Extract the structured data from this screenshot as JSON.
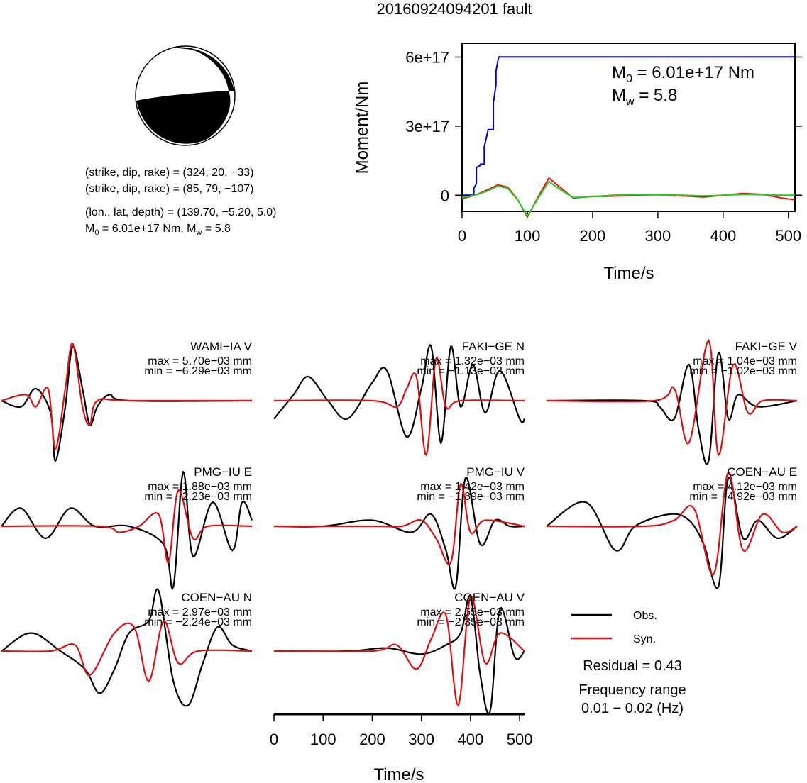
{
  "page": {
    "title": "20160924094201 fault"
  },
  "mechanism": {
    "line1": "(strike, dip, rake) = (324, 20, −33)",
    "line2": "(strike, dip, rake) = (85, 79, −107)",
    "line3": "(lon., lat, depth) = (139.70, −5.20, 5.0)",
    "line4_m0": "M",
    "line4_m0sub": "0",
    "line4_rest1": " = 6.01e+17 Nm, M",
    "line4_mwsub": "w",
    "line4_rest2": " = 5.8",
    "fill_color": "#000000"
  },
  "chart_data": [
    {
      "type": "line",
      "id": "moment-rate",
      "xlabel": "Time/s",
      "ylabel": "Moment/Nm",
      "xlim": [
        0,
        510
      ],
      "ylim": [
        -7e+16,
        6.6e+17
      ],
      "xticks": [
        0,
        100,
        200,
        300,
        400,
        500
      ],
      "yticks": [
        0,
        3e+17,
        6e+17
      ],
      "ytick_labels": [
        "0",
        "3e+17",
        "6e+17"
      ],
      "annotation": {
        "m0_symbol": "M",
        "m0_sub": "0",
        "m0_value": " = 6.01e+17 Nm",
        "mw_symbol": "M",
        "mw_sub": "w",
        "mw_value": " = 5.8"
      },
      "series": [
        {
          "color": "#0000cc",
          "x": [
            0,
            18,
            18,
            22,
            22,
            28,
            28,
            34,
            34,
            40,
            40,
            48,
            48,
            52,
            52,
            56,
            56,
            510
          ],
          "y": [
            0,
            0,
            3e+16,
            5e+16,
            1.2e+17,
            1.3e+17,
            1.35e+17,
            1.35e+17,
            2.1e+17,
            2.85e+17,
            2.85e+17,
            2.85e+17,
            4e+17,
            4.8e+17,
            5.4e+17,
            6e+17,
            6.01e+17,
            6.01e+17
          ]
        },
        {
          "color": "#ee1111",
          "x": [
            0,
            20,
            40,
            55,
            70,
            85,
            100,
            115,
            133,
            150,
            170,
            200,
            230,
            260,
            300,
            340,
            370,
            400,
            430,
            460,
            490,
            510
          ],
          "y": [
            -1.5e+16,
            0,
            2.5e+16,
            4.5e+16,
            3.5e+16,
            -1.8e+16,
            -9.5e+16,
            -1.5e+16,
            7.5e+16,
            3.5e+16,
            -1.2e+16,
            -5000000000000000.0,
            -4000000000000000.0,
            0,
            2000000000000000.0,
            -3000000000000000.0,
            -8000000000000000.0,
            0,
            8000000000000000.0,
            4000000000000000.0,
            -1.2e+16,
            -2e+16
          ]
        },
        {
          "color": "#22cc22",
          "x": [
            0,
            20,
            40,
            55,
            70,
            85,
            100,
            115,
            133,
            150,
            170,
            200,
            230,
            260,
            300,
            340,
            370,
            400,
            430,
            460,
            490,
            510
          ],
          "y": [
            -1e+16,
            0,
            2e+16,
            4e+16,
            3e+16,
            -2e+16,
            -9e+16,
            -2e+16,
            6e+16,
            2.5e+16,
            -1e+16,
            -6000000000000000.0,
            0,
            3000000000000000.0,
            2000000000000000.0,
            0,
            -3000000000000000.0,
            0,
            3000000000000000.0,
            2000000000000000.0,
            0,
            0
          ]
        }
      ]
    },
    {
      "type": "line",
      "id": "waveforms",
      "xlabel": "Time/s",
      "xlim": [
        0,
        510
      ],
      "xticks": [
        0,
        100,
        200,
        300,
        400,
        500
      ],
      "legend": {
        "obs": "Obs.",
        "syn": "Syn.",
        "obs_color": "#000000",
        "syn_color": "#dd1111"
      },
      "residual": "Residual = 0.43",
      "freq_label": "Frequency range",
      "freq_value": "0.01 − 0.02 (Hz)",
      "stations": [
        {
          "name": "WAMI−IA V",
          "max": "max = 5.70e−03 mm",
          "min": "min = −6.29e−03 mm",
          "obs": [
            [
              0,
              0
            ],
            [
              40,
              -0.1
            ],
            [
              70,
              0.2
            ],
            [
              100,
              -0.2
            ],
            [
              110,
              -1.0
            ],
            [
              130,
              -0.1
            ],
            [
              145,
              0.9
            ],
            [
              165,
              0.2
            ],
            [
              180,
              -0.4
            ],
            [
              195,
              -0.1
            ],
            [
              220,
              0.1
            ],
            [
              260,
              0.0
            ],
            [
              510,
              0.0
            ]
          ],
          "syn": [
            [
              0,
              0
            ],
            [
              50,
              0.1
            ],
            [
              70,
              -0.1
            ],
            [
              95,
              0.2
            ],
            [
              110,
              -0.8
            ],
            [
              130,
              0.2
            ],
            [
              145,
              0.95
            ],
            [
              165,
              -0.1
            ],
            [
              180,
              -0.4
            ],
            [
              195,
              0.0
            ],
            [
              260,
              0.0
            ],
            [
              510,
              0.0
            ]
          ]
        },
        {
          "name": "FAKI−GE N",
          "max": "max = 1.32e−03 mm",
          "min": "min = −1.13e−03 mm",
          "obs": [
            [
              0,
              -0.3
            ],
            [
              40,
              0.1
            ],
            [
              70,
              0.4
            ],
            [
              110,
              0.0
            ],
            [
              150,
              -0.3
            ],
            [
              200,
              0.3
            ],
            [
              230,
              0.5
            ],
            [
              270,
              -0.6
            ],
            [
              300,
              0.2
            ],
            [
              320,
              0.9
            ],
            [
              340,
              -0.7
            ],
            [
              360,
              0.9
            ],
            [
              380,
              -0.1
            ],
            [
              405,
              0.6
            ],
            [
              430,
              -0.2
            ],
            [
              460,
              0.5
            ],
            [
              500,
              -0.3
            ],
            [
              510,
              -0.3
            ]
          ],
          "syn": [
            [
              0,
              0
            ],
            [
              200,
              0.0
            ],
            [
              250,
              -0.1
            ],
            [
              270,
              0.2
            ],
            [
              290,
              0.4
            ],
            [
              310,
              -0.9
            ],
            [
              330,
              0.7
            ],
            [
              350,
              -0.1
            ],
            [
              380,
              0.0
            ],
            [
              510,
              0.0
            ]
          ]
        },
        {
          "name": "FAKI−GE V",
          "max": "max = 1.04e−03 mm",
          "min": "min = −1.02e−03 mm",
          "obs": [
            [
              0,
              0
            ],
            [
              200,
              0.0
            ],
            [
              230,
              -0.1
            ],
            [
              260,
              -0.3
            ],
            [
              290,
              0.6
            ],
            [
              310,
              -0.5
            ],
            [
              330,
              -1.0
            ],
            [
              350,
              0.8
            ],
            [
              370,
              -0.3
            ],
            [
              390,
              0.1
            ],
            [
              430,
              -0.1
            ],
            [
              510,
              0.0
            ]
          ],
          "syn": [
            [
              0,
              0
            ],
            [
              220,
              0.0
            ],
            [
              260,
              0.2
            ],
            [
              290,
              -0.7
            ],
            [
              330,
              1.0
            ],
            [
              350,
              -0.9
            ],
            [
              380,
              0.6
            ],
            [
              410,
              -0.2
            ],
            [
              440,
              0.0
            ],
            [
              510,
              0.0
            ]
          ]
        },
        {
          "name": "PMG−IU E",
          "max": "max = 1.88e−03 mm",
          "min": "min = −2.23e−03 mm",
          "obs": [
            [
              0,
              0
            ],
            [
              40,
              0.3
            ],
            [
              90,
              -0.2
            ],
            [
              140,
              0.3
            ],
            [
              190,
              0.0
            ],
            [
              260,
              0.0
            ],
            [
              330,
              -0.3
            ],
            [
              350,
              -1.0
            ],
            [
              370,
              0.9
            ],
            [
              390,
              -0.5
            ],
            [
              430,
              0.4
            ],
            [
              470,
              -0.4
            ],
            [
              490,
              0.4
            ],
            [
              510,
              0.1
            ]
          ],
          "syn": [
            [
              0,
              0
            ],
            [
              200,
              0.0
            ],
            [
              240,
              -0.1
            ],
            [
              280,
              0.0
            ],
            [
              320,
              0.2
            ],
            [
              340,
              -0.6
            ],
            [
              360,
              0.6
            ],
            [
              390,
              -0.2
            ],
            [
              420,
              0.0
            ],
            [
              510,
              0.0
            ]
          ]
        },
        {
          "name": "PMG−IU V",
          "max": "max = 1.42e−03 mm",
          "min": "min = −1.89e−03 mm",
          "obs": [
            [
              0,
              0
            ],
            [
              100,
              0.0
            ],
            [
              200,
              0.1
            ],
            [
              280,
              -0.1
            ],
            [
              320,
              0.2
            ],
            [
              350,
              -0.4
            ],
            [
              370,
              -1.0
            ],
            [
              390,
              0.8
            ],
            [
              420,
              -0.3
            ],
            [
              450,
              0.1
            ],
            [
              480,
              0.0
            ],
            [
              510,
              0.0
            ]
          ],
          "syn": [
            [
              0,
              0
            ],
            [
              200,
              0.0
            ],
            [
              260,
              0.0
            ],
            [
              300,
              0.1
            ],
            [
              330,
              -0.2
            ],
            [
              360,
              -0.6
            ],
            [
              380,
              0.7
            ],
            [
              400,
              -0.1
            ],
            [
              430,
              0.1
            ],
            [
              510,
              0.0
            ]
          ]
        },
        {
          "name": "COEN−AU E",
          "max": "max = 4.12e−03 mm",
          "min": "min = −4.92e−03 mm",
          "obs": [
            [
              0,
              0
            ],
            [
              80,
              0.4
            ],
            [
              140,
              -0.4
            ],
            [
              180,
              0.0
            ],
            [
              250,
              0.2
            ],
            [
              290,
              0.1
            ],
            [
              320,
              -0.3
            ],
            [
              350,
              -1.0
            ],
            [
              370,
              0.8
            ],
            [
              400,
              -0.2
            ],
            [
              430,
              0.1
            ],
            [
              470,
              -0.2
            ],
            [
              510,
              0.0
            ]
          ],
          "syn": [
            [
              0,
              0
            ],
            [
              200,
              0.0
            ],
            [
              260,
              0.1
            ],
            [
              300,
              0.3
            ],
            [
              340,
              -0.8
            ],
            [
              370,
              0.9
            ],
            [
              400,
              -0.4
            ],
            [
              440,
              0.2
            ],
            [
              480,
              -0.1
            ],
            [
              510,
              0.0
            ]
          ]
        },
        {
          "name": "COEN−AU N",
          "max": "max = 2.97e−03 mm",
          "min": "min = −2.24e−03 mm",
          "obs": [
            [
              0,
              0
            ],
            [
              60,
              0.3
            ],
            [
              120,
              0.0
            ],
            [
              170,
              -0.3
            ],
            [
              200,
              -0.7
            ],
            [
              230,
              -0.3
            ],
            [
              260,
              0.3
            ],
            [
              300,
              0.5
            ],
            [
              320,
              1.0
            ],
            [
              350,
              -0.5
            ],
            [
              380,
              -0.9
            ],
            [
              410,
              -0.2
            ],
            [
              440,
              0.4
            ],
            [
              470,
              0.1
            ],
            [
              510,
              0.0
            ]
          ],
          "syn": [
            [
              0,
              0
            ],
            [
              100,
              0.0
            ],
            [
              150,
              0.1
            ],
            [
              180,
              -0.4
            ],
            [
              230,
              0.3
            ],
            [
              270,
              0.4
            ],
            [
              300,
              -0.5
            ],
            [
              330,
              0.5
            ],
            [
              360,
              -0.2
            ],
            [
              400,
              0.0
            ],
            [
              510,
              0.0
            ]
          ]
        },
        {
          "name": "COEN−AU V",
          "max": "max = 2.55e−03 mm",
          "min": "min = −2.35e−03 mm",
          "obs": [
            [
              0,
              0
            ],
            [
              150,
              0.0
            ],
            [
              230,
              0.05
            ],
            [
              300,
              -0.05
            ],
            [
              350,
              0.1
            ],
            [
              380,
              0.3
            ],
            [
              400,
              0.9
            ],
            [
              420,
              -0.4
            ],
            [
              440,
              -1.0
            ],
            [
              460,
              0.7
            ],
            [
              490,
              -0.1
            ],
            [
              510,
              0.0
            ]
          ],
          "syn": [
            [
              0,
              0
            ],
            [
              200,
              0.0
            ],
            [
              250,
              0.1
            ],
            [
              290,
              -0.3
            ],
            [
              320,
              0.2
            ],
            [
              350,
              0.6
            ],
            [
              375,
              -0.9
            ],
            [
              400,
              0.9
            ],
            [
              430,
              -0.2
            ],
            [
              460,
              0.3
            ],
            [
              510,
              0.0
            ]
          ]
        }
      ]
    }
  ]
}
